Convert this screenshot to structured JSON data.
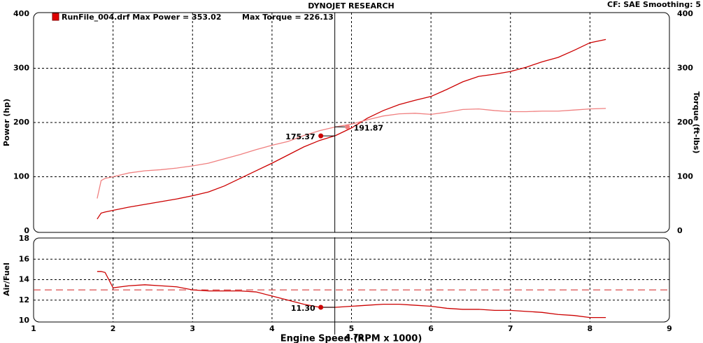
{
  "chart_data": [
    {
      "type": "line",
      "title": "DYNOJET RESEARCH",
      "subtitle": "CF: SAE  Smoothing: 5",
      "legend": [
        "RunFile_004.drf Max Power = 353.02",
        "Max Torque = 226.13"
      ],
      "ylabel": "Power (hp)",
      "y2label": "Torque (ft-lbs)",
      "x": [
        1.8,
        1.85,
        1.9,
        2.0,
        2.2,
        2.4,
        2.6,
        2.8,
        3.0,
        3.2,
        3.4,
        3.6,
        3.8,
        4.0,
        4.2,
        4.4,
        4.6,
        4.8,
        5.0,
        5.2,
        5.4,
        5.6,
        5.8,
        6.0,
        6.2,
        6.4,
        6.6,
        6.8,
        7.0,
        7.2,
        7.4,
        7.6,
        7.8,
        8.0,
        8.2
      ],
      "series": [
        {
          "color": "#cc0000",
          "values": [
            22,
            33,
            35,
            38,
            44,
            49,
            54,
            59,
            65,
            72,
            83,
            97,
            111,
            125,
            140,
            155,
            167,
            176,
            190,
            208,
            222,
            233,
            241,
            248,
            261,
            275,
            285,
            289,
            294,
            302,
            312,
            320,
            333,
            347,
            353
          ]
        },
        {
          "color": "#f08080",
          "axis": "y2",
          "values": [
            60,
            93,
            97,
            100,
            107,
            111,
            113,
            116,
            120,
            125,
            133,
            141,
            150,
            158,
            165,
            176,
            185,
            192,
            197,
            205,
            212,
            216,
            217,
            215,
            219,
            224,
            225,
            222,
            220,
            220,
            221,
            221,
            223,
            225,
            226
          ]
        }
      ],
      "readouts": [
        175.37,
        191.87
      ],
      "xlim": [
        1,
        9
      ],
      "ylim": [
        0,
        400
      ],
      "yticks": [
        0,
        100,
        200,
        300,
        400
      ],
      "y2lim": [
        0,
        400
      ],
      "y2ticks": [
        0,
        100,
        200,
        300,
        400
      ],
      "grid": true
    },
    {
      "type": "line",
      "ylabel": "Air/Fuel",
      "xlabel": "Engine Speed (RPM x 1000)",
      "x": [
        1.8,
        1.85,
        1.9,
        2.0,
        2.2,
        2.4,
        2.6,
        2.8,
        3.0,
        3.2,
        3.4,
        3.6,
        3.8,
        4.0,
        4.2,
        4.4,
        4.6,
        4.8,
        5.0,
        5.2,
        5.4,
        5.6,
        5.8,
        6.0,
        6.2,
        6.4,
        6.6,
        6.8,
        7.0,
        7.2,
        7.4,
        7.6,
        7.8,
        8.0,
        8.2
      ],
      "series": [
        {
          "color": "#cc0000",
          "values": [
            14.8,
            14.8,
            14.7,
            13.2,
            13.4,
            13.5,
            13.4,
            13.3,
            13.0,
            12.9,
            12.9,
            12.9,
            12.8,
            12.4,
            12.0,
            11.6,
            11.3,
            11.3,
            11.4,
            11.5,
            11.6,
            11.6,
            11.5,
            11.4,
            11.2,
            11.1,
            11.1,
            11.0,
            11.0,
            10.9,
            10.8,
            10.6,
            10.5,
            10.3,
            10.3
          ]
        }
      ],
      "reference_line": 13,
      "reference_color": "#d02020",
      "readouts": [
        11.3
      ],
      "readout_labels": [
        "11.30"
      ],
      "cursor_x": 4.79,
      "xlim": [
        1,
        9
      ],
      "xticks": [
        1,
        2,
        3,
        4,
        5,
        6,
        7,
        8,
        9
      ],
      "ylim": [
        10,
        18
      ],
      "yticks": [
        10,
        12,
        14,
        16,
        18
      ],
      "grid": true
    }
  ]
}
